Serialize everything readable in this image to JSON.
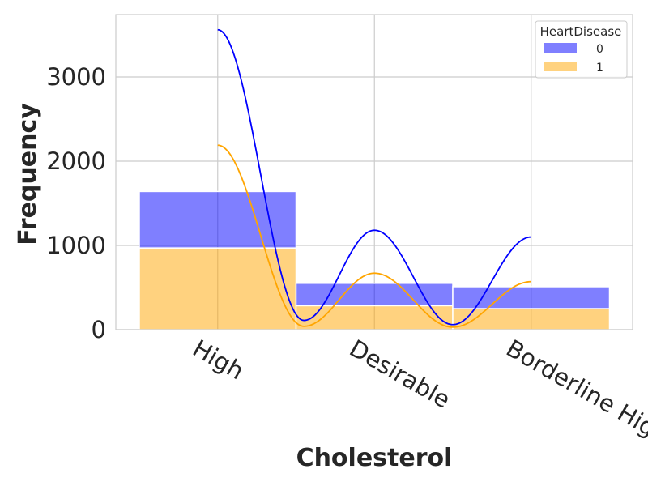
{
  "chart_data": {
    "type": "bar",
    "stacked": true,
    "with_kde": true,
    "categories": [
      "High",
      "Desirable",
      "Borderline High"
    ],
    "series": [
      {
        "name": "0",
        "values": [
          670,
          265,
          260
        ],
        "color": "#0000ff"
      },
      {
        "name": "1",
        "values": [
          970,
          285,
          250
        ],
        "color": "#ffa500"
      }
    ],
    "kde": [
      {
        "name": "0",
        "peaks": [
          3560,
          1180,
          1100
        ],
        "troughs": [
          110,
          60
        ],
        "color": "#0000ff"
      },
      {
        "name": "1",
        "peaks": [
          2190,
          670,
          570
        ],
        "troughs": [
          40,
          30
        ],
        "color": "#ffa500"
      }
    ],
    "title": "",
    "xlabel": "Cholesterol",
    "ylabel": "Frequency",
    "yticks": [
      0,
      1000,
      2000,
      3000
    ],
    "ylim": [
      0,
      3740
    ],
    "grid": true,
    "legend": {
      "title": "HeartDisease",
      "position": "top-right",
      "entries": [
        "0",
        "1"
      ]
    }
  }
}
